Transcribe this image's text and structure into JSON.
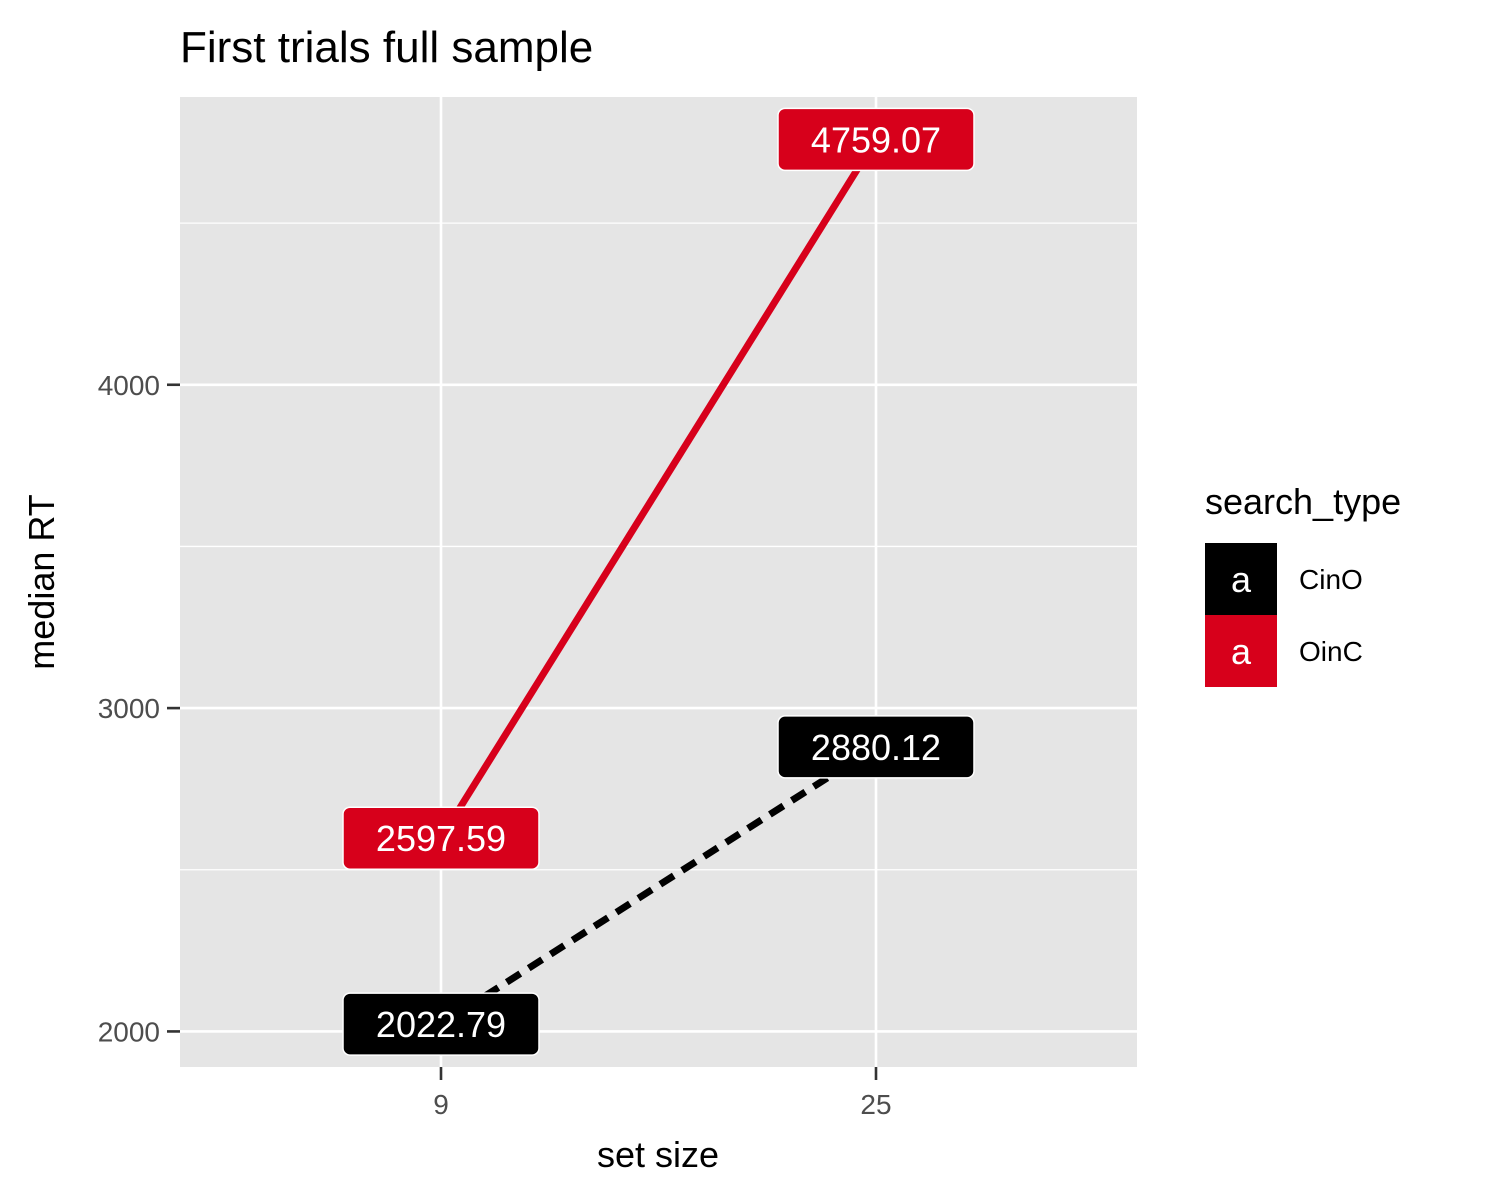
{
  "chart_data": {
    "type": "line",
    "title": "First trials full sample",
    "xlabel": "set size",
    "ylabel": "median RT",
    "categories": [
      "9",
      "25"
    ],
    "y_ticks": [
      2000,
      3000,
      4000
    ],
    "ylim": [
      1890,
      4890
    ],
    "grid": true,
    "legend": {
      "title": "search_type",
      "placement": "right",
      "key_glyph": "a",
      "entries": [
        "CinO",
        "OinC"
      ]
    },
    "series": [
      {
        "name": "CinO",
        "values": [
          2022.79,
          2880.12
        ],
        "labels": [
          "2022.79",
          "2880.12"
        ],
        "color": "#000000",
        "linestyle": "dashed"
      },
      {
        "name": "OinC",
        "values": [
          2597.59,
          4759.07
        ],
        "labels": [
          "2597.59",
          "4759.07"
        ],
        "color": "#d7001b",
        "linestyle": "solid"
      }
    ],
    "panel_background": "#e5e5e5",
    "gridline_color": "#ffffff"
  }
}
